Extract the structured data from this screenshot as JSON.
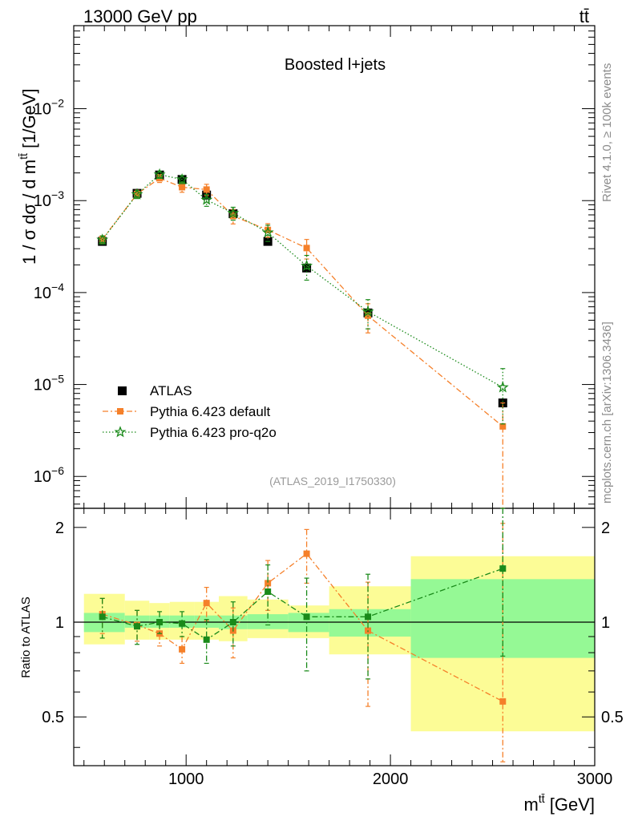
{
  "header": {
    "energy_label": "13000 GeV pp",
    "process_label": "tt̄"
  },
  "side_labels": {
    "rivet": "Rivet 4.1.0, ≥ 100k events",
    "mcplots": "mcplots.cern.ch [arXiv:1306.3436]"
  },
  "chart_data": [
    {
      "type": "scatter",
      "title": "Boosted l+jets",
      "analysis_label": "(ATLAS_2019_I1750330)",
      "xlabel": "m^{tt̄} [GeV]",
      "ylabel": "1 / σ dσ / d m^{tt̄} [1/GeV]",
      "yscale": "log",
      "xlim": [
        450,
        3000
      ],
      "ylim": [
        4.5e-07,
        0.08
      ],
      "x_ticks": [
        1000,
        2000,
        3000
      ],
      "y_ticks": [
        {
          "value": 1e-06,
          "mant": "10",
          "exp": "−6"
        },
        {
          "value": 1e-05,
          "mant": "10",
          "exp": "−5"
        },
        {
          "value": 0.0001,
          "mant": "10",
          "exp": "−4"
        },
        {
          "value": 0.001,
          "mant": "10",
          "exp": "−3"
        },
        {
          "value": 0.01,
          "mant": "10",
          "exp": "−2"
        }
      ],
      "legend": {
        "placement": "bottom-left",
        "entries": [
          "ATLAS",
          "Pythia 6.423 default",
          "Pythia 6.423 pro-q2o"
        ]
      },
      "bins": [
        [
          500,
          700
        ],
        [
          700,
          820
        ],
        [
          820,
          920
        ],
        [
          920,
          1040
        ],
        [
          1040,
          1160
        ],
        [
          1160,
          1300
        ],
        [
          1300,
          1500
        ],
        [
          1500,
          1700
        ],
        [
          1700,
          2100
        ],
        [
          2100,
          3000
        ]
      ],
      "series": [
        {
          "name": "ATLAS",
          "color": "#000000",
          "marker": "square",
          "x": [
            590,
            760,
            870,
            980,
            1100,
            1230,
            1400,
            1590,
            1890,
            2550
          ],
          "y": [
            0.00036,
            0.0012,
            0.0019,
            0.0017,
            0.00115,
            0.00072,
            0.00036,
            0.000185,
            6e-05,
            6.3e-06
          ]
        },
        {
          "name": "Pythia 6.423 default",
          "color": "#f5802a",
          "marker": "square",
          "line": "dashdot",
          "x": [
            590,
            760,
            870,
            980,
            1100,
            1230,
            1400,
            1590,
            1890,
            2550
          ],
          "y": [
            0.00038,
            0.00118,
            0.00175,
            0.0014,
            0.00132,
            0.00068,
            0.00048,
            0.000305,
            5.6e-05,
            3.5e-06
          ],
          "err_up": [
            0.09,
            0.1,
            0.1,
            0.12,
            0.14,
            0.18,
            0.17,
            0.24,
            0.35,
            0.8
          ],
          "err_down": [
            0.09,
            0.1,
            0.1,
            0.12,
            0.14,
            0.18,
            0.17,
            0.24,
            0.35,
            0.95
          ]
        },
        {
          "name": "Pythia 6.423 pro-q2o",
          "color": "#1a8a1a",
          "marker": "star",
          "line": "dotted",
          "x": [
            590,
            760,
            870,
            980,
            1100,
            1230,
            1400,
            1590,
            1890,
            2550
          ],
          "y": [
            0.000375,
            0.00117,
            0.00192,
            0.0017,
            0.00102,
            0.00073,
            0.00045,
            0.000195,
            6.2e-05,
            9.3e-06
          ],
          "err_up": [
            0.1,
            0.1,
            0.09,
            0.1,
            0.15,
            0.16,
            0.2,
            0.3,
            0.35,
            0.6
          ],
          "err_down": [
            0.1,
            0.1,
            0.09,
            0.1,
            0.15,
            0.16,
            0.2,
            0.3,
            0.35,
            0.6
          ]
        }
      ]
    },
    {
      "type": "scatter",
      "ylabel": "Ratio to ATLAS",
      "xlabel": "m^{tt̄} [GeV]",
      "ylim": [
        0.35,
        2.3
      ],
      "y_ticks": [
        0.5,
        1,
        2
      ],
      "y_tick_labels": [
        "0.5",
        "1",
        "2"
      ],
      "reference_line": 1,
      "bands": {
        "stat_color": "#95f995",
        "total_color": "#fcfc96",
        "stat_low": [
          0.93,
          0.96,
          0.96,
          0.96,
          0.96,
          0.95,
          0.95,
          0.93,
          0.9,
          0.77
        ],
        "stat_high": [
          1.07,
          1.05,
          1.05,
          1.05,
          1.05,
          1.05,
          1.06,
          1.07,
          1.1,
          1.37
        ],
        "total_low": [
          0.85,
          0.88,
          0.88,
          0.88,
          0.88,
          0.87,
          0.89,
          0.89,
          0.79,
          0.45
        ],
        "total_high": [
          1.23,
          1.17,
          1.15,
          1.16,
          1.16,
          1.21,
          1.18,
          1.13,
          1.3,
          1.62
        ]
      },
      "series": [
        {
          "name": "Pythia 6.423 default",
          "color": "#f5802a",
          "x": [
            590,
            760,
            870,
            980,
            1100,
            1230,
            1400,
            1590,
            1890,
            2550
          ],
          "y": [
            1.06,
            0.98,
            0.92,
            0.82,
            1.15,
            0.94,
            1.33,
            1.65,
            0.94,
            0.56
          ],
          "err_up": [
            0.13,
            0.11,
            0.08,
            0.08,
            0.14,
            0.17,
            0.24,
            0.32,
            0.4,
            1.5
          ],
          "err_down": [
            0.14,
            0.11,
            0.08,
            0.08,
            0.14,
            0.17,
            0.24,
            0.32,
            0.4,
            0.4
          ]
        },
        {
          "name": "Pythia 6.423 pro-q2o",
          "color": "#1a8a1a",
          "x": [
            590,
            760,
            870,
            980,
            1100,
            1230,
            1400,
            1590,
            1890,
            2550
          ],
          "y": [
            1.04,
            0.97,
            1.0,
            0.99,
            0.88,
            1.0,
            1.25,
            1.04,
            1.04,
            1.48
          ],
          "err_up": [
            0.15,
            0.12,
            0.08,
            0.09,
            0.14,
            0.16,
            0.27,
            0.34,
            0.38,
            0.9
          ],
          "err_down": [
            0.15,
            0.12,
            0.08,
            0.09,
            0.14,
            0.16,
            0.27,
            0.34,
            0.38,
            0.7
          ]
        }
      ]
    }
  ]
}
